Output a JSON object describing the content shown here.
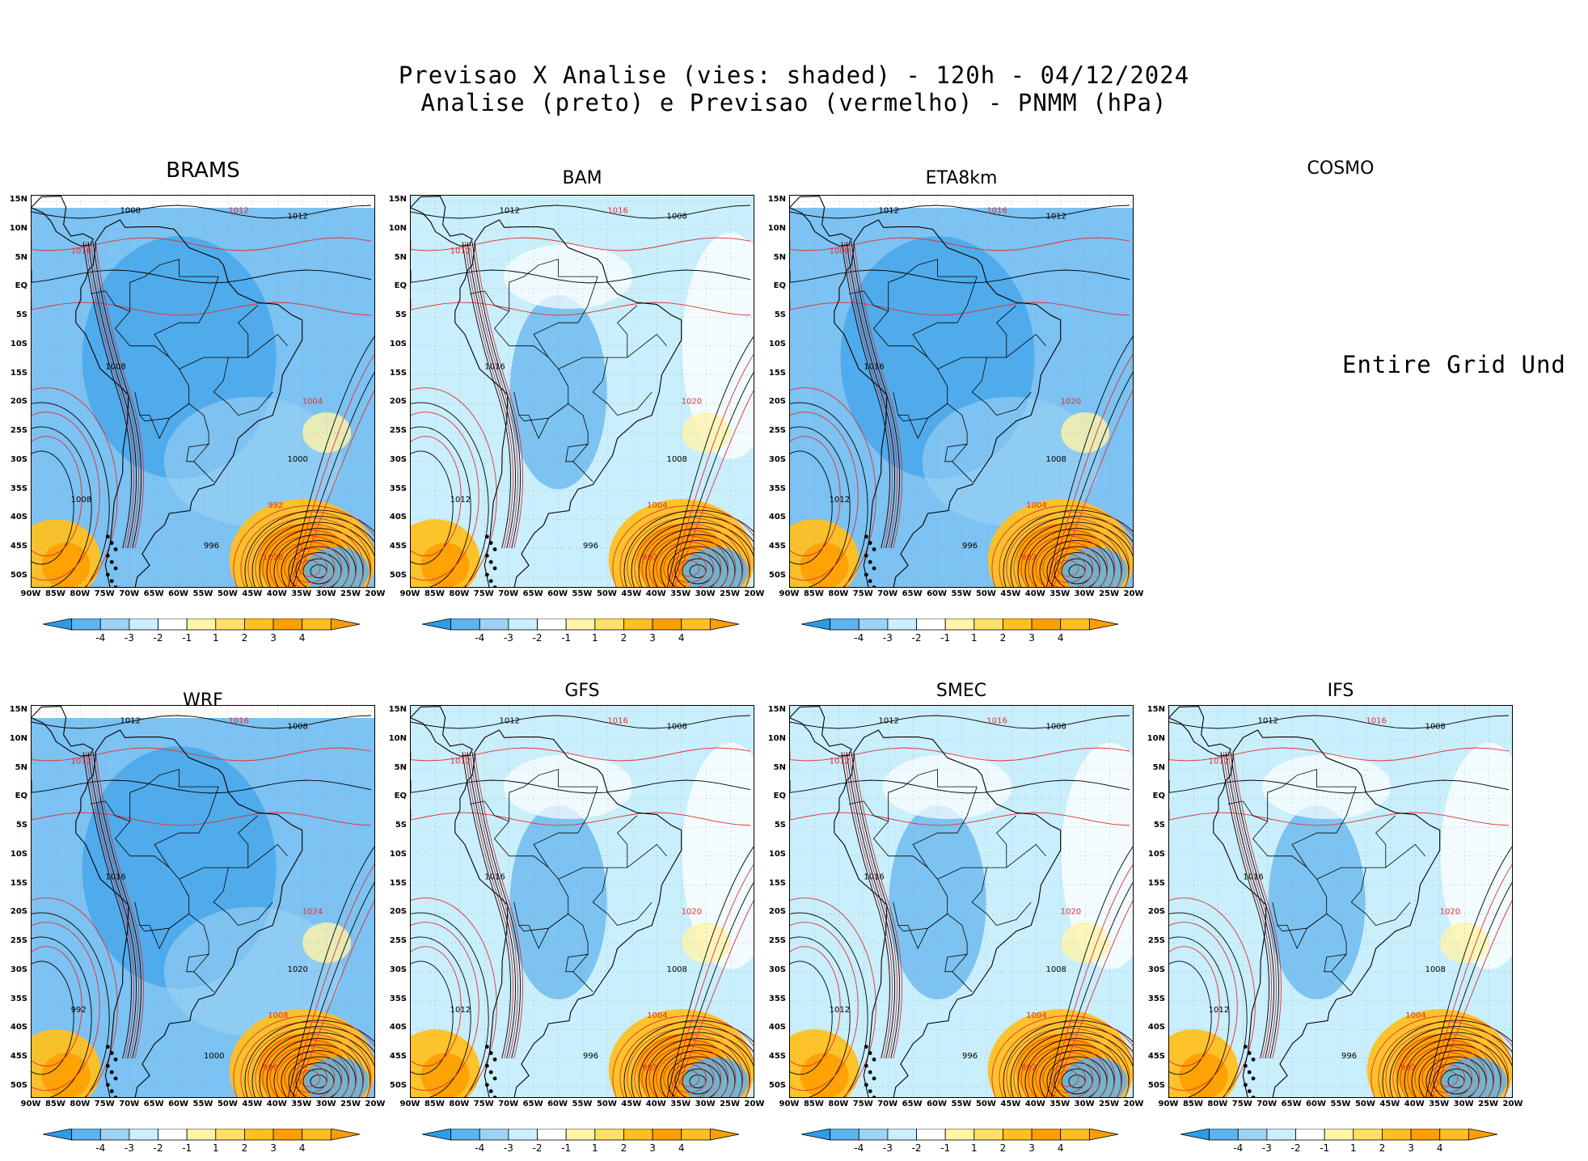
{
  "header": {
    "line1": "Previsao X Analise (vies: shaded) - 120h - 04/12/2024",
    "line2": "Analise (preto) e Previsao (vermelho) - PNMM (hPa)"
  },
  "lat_labels": [
    "15N",
    "10N",
    "5N",
    "EQ",
    "5S",
    "10S",
    "15S",
    "20S",
    "25S",
    "30S",
    "35S",
    "40S",
    "45S",
    "50S"
  ],
  "lon_labels": [
    "90W",
    "85W",
    "80W",
    "75W",
    "70W",
    "65W",
    "60W",
    "55W",
    "50W",
    "45W",
    "40W",
    "35W",
    "30W",
    "25W",
    "20W"
  ],
  "colorbar": {
    "ticks": [
      "-4",
      "-3",
      "-2",
      "-1",
      "1",
      "2",
      "3",
      "4"
    ],
    "colors": [
      "#2b9de8",
      "#5bb4ef",
      "#9dd2f5",
      "#ccefff",
      "#ffffff",
      "#fff4a8",
      "#ffe066",
      "#ffc020",
      "#ff9e00"
    ]
  },
  "colors": {
    "analysis": "#000000",
    "forecast": "#e03030",
    "neg_strong": "#4aa8ea",
    "neg_weak": "#b8e4fb",
    "pos_weak": "#ffe680",
    "pos_strong": "#ffaa10"
  },
  "panels": [
    {
      "name": "BRAMS",
      "status": "ok",
      "bias": "neg_strong",
      "labels": [
        "1008",
        "1012",
        "1012",
        "1016",
        "1008",
        "1004",
        "1000",
        "992",
        "996",
        "1020",
        "1008"
      ]
    },
    {
      "name": "BAM",
      "status": "ok",
      "bias": "neg_weak",
      "labels": [
        "1012",
        "1016",
        "1008",
        "1012",
        "1016",
        "1020",
        "1008",
        "1004",
        "996",
        "992",
        "1012"
      ]
    },
    {
      "name": "ETA8km",
      "status": "ok",
      "bias": "neg_strong",
      "labels": [
        "1012",
        "1016",
        "1012",
        "1008",
        "1016",
        "1020",
        "1008",
        "1004",
        "996",
        "992",
        "1012"
      ]
    },
    {
      "name": "COSMO",
      "status": "undefined",
      "message": "Entire Grid Und"
    },
    {
      "name": "WRF",
      "status": "ok",
      "bias": "neg_strong",
      "labels": [
        "1012",
        "1016",
        "1008",
        "1012",
        "1016",
        "1024",
        "1020",
        "1008",
        "1000",
        "996",
        "992"
      ]
    },
    {
      "name": "GFS",
      "status": "ok",
      "bias": "neg_weak",
      "labels": [
        "1012",
        "1016",
        "1008",
        "1012",
        "1016",
        "1020",
        "1008",
        "1004",
        "996",
        "992",
        "1012"
      ]
    },
    {
      "name": "SMEC",
      "status": "ok",
      "bias": "neg_weak",
      "labels": [
        "1012",
        "1016",
        "1008",
        "1012",
        "1016",
        "1020",
        "1008",
        "1004",
        "996",
        "992",
        "1012"
      ]
    },
    {
      "name": "IFS",
      "status": "ok",
      "bias": "neg_weak",
      "labels": [
        "1012",
        "1016",
        "1008",
        "1012",
        "1016",
        "1020",
        "1008",
        "1004",
        "996",
        "992",
        "1012"
      ]
    }
  ]
}
